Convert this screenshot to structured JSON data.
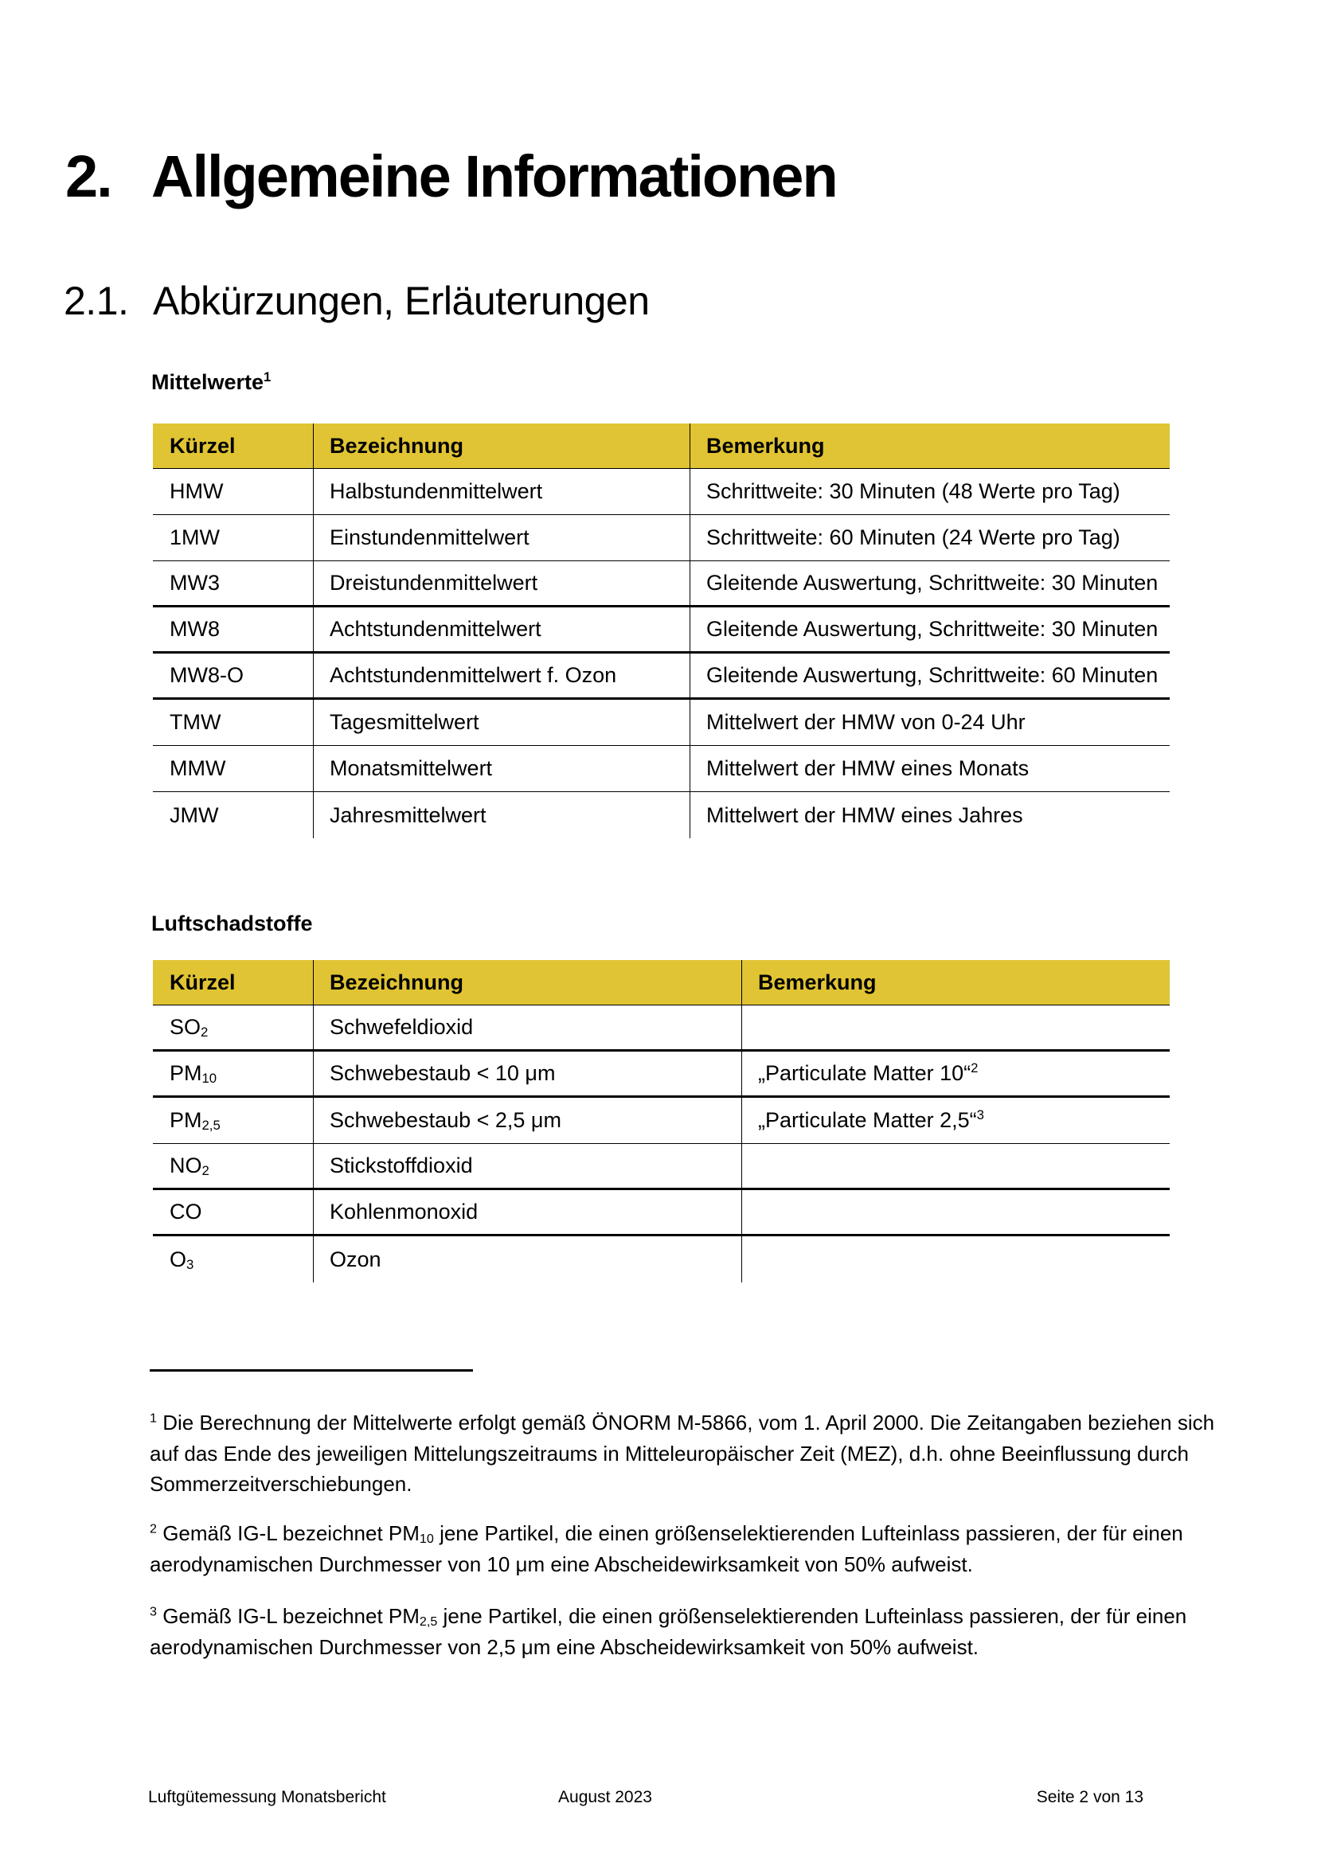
{
  "colors": {
    "table_header_yellow": "#E0C433",
    "text": "#000000"
  },
  "heading": {
    "number": "2.",
    "title": "Allgemeine Informationen"
  },
  "subheading": {
    "number": "2.1.",
    "title": "Abkürzungen, Erläuterungen"
  },
  "mittelwerte": {
    "label": "Mittelwerte^1^",
    "columns": [
      "Kürzel",
      "Bezeichnung",
      "Bemerkung"
    ],
    "rows": [
      {
        "kuerzel": "HMW",
        "bezeichnung": "Halbstundenmittelwert",
        "bemerkung": "Schrittweite: 30 Minuten (48 Werte pro Tag)",
        "border": "thin"
      },
      {
        "kuerzel": "1MW",
        "bezeichnung": "Einstundenmittelwert",
        "bemerkung": "Schrittweite: 60 Minuten (24 Werte pro Tag)",
        "border": "thin"
      },
      {
        "kuerzel": "MW3",
        "bezeichnung": "Dreistundenmittelwert",
        "bemerkung": "Gleitende Auswertung, Schrittweite: 30 Minuten",
        "border": "thick"
      },
      {
        "kuerzel": "MW8",
        "bezeichnung": "Achtstundenmittelwert",
        "bemerkung": "Gleitende Auswertung, Schrittweite: 30 Minuten",
        "border": "thick"
      },
      {
        "kuerzel": "MW8-O",
        "bezeichnung": "Achtstundenmittelwert f. Ozon",
        "bemerkung": "Gleitende Auswertung, Schrittweite: 60 Minuten",
        "border": "thick"
      },
      {
        "kuerzel": "TMW",
        "bezeichnung": "Tagesmittelwert",
        "bemerkung": "Mittelwert der HMW von 0-24 Uhr",
        "border": "thin"
      },
      {
        "kuerzel": "MMW",
        "bezeichnung": "Monatsmittelwert",
        "bemerkung": "Mittelwert der HMW eines Monats",
        "border": "thin"
      },
      {
        "kuerzel": "JMW",
        "bezeichnung": "Jahresmittelwert",
        "bemerkung": "Mittelwert der HMW eines Jahres",
        "border": "none"
      }
    ]
  },
  "luftschadstoffe": {
    "label": "Luftschadstoffe",
    "columns": [
      "Kürzel",
      "Bezeichnung",
      "Bemerkung"
    ],
    "rows": [
      {
        "kuerzel": "SO~2~",
        "bezeichnung": "Schwefeldioxid",
        "bemerkung": "",
        "border": "thick"
      },
      {
        "kuerzel": "PM~10~",
        "bezeichnung": "Schwebestaub < 10 μm",
        "bemerkung": "„Particulate Matter 10“^2^",
        "border": "thick"
      },
      {
        "kuerzel": "PM~2,5~",
        "bezeichnung": "Schwebestaub < 2,5 μm",
        "bemerkung": "„Particulate Matter 2,5“^3^",
        "border": "thin"
      },
      {
        "kuerzel": "NO~2~",
        "bezeichnung": "Stickstoffdioxid",
        "bemerkung": "",
        "border": "thick"
      },
      {
        "kuerzel": "CO",
        "bezeichnung": "Kohlenmonoxid",
        "bemerkung": "",
        "border": "thick"
      },
      {
        "kuerzel": "O~3~",
        "bezeichnung": "Ozon",
        "bemerkung": "",
        "border": "none"
      }
    ]
  },
  "footnotes": [
    {
      "lines": [
        "^1^ Die Berechnung der Mittelwerte erfolgt gemäß ÖNORM M-5866, vom 1. April 2000. Die Zeitangaben beziehen sich",
        "auf das Ende des jeweiligen Mittelungszeitraums in Mitteleuropäischer Zeit (MEZ), d.h. ohne Beeinflussung durch",
        "Sommerzeitverschiebungen."
      ]
    },
    {
      "lines": [
        "^2^ Gemäß IG-L bezeichnet PM~10~ jene Partikel, die einen größenselektierenden Lufteinlass passieren, der für einen",
        "aerodynamischen Durchmesser von 10 μm eine Abscheidewirksamkeit von 50% aufweist."
      ]
    },
    {
      "lines": [
        "^3^ Gemäß IG-L bezeichnet PM~2,5~ jene Partikel, die einen größenselektierenden Lufteinlass passieren, der für einen",
        "aerodynamischen Durchmesser von 2,5 μm eine Abscheidewirksamkeit von 50% aufweist."
      ]
    }
  ],
  "footer": {
    "left": "Luftgütemessung Monatsbericht",
    "center": "August 2023",
    "right": "Seite 2 von 13"
  }
}
